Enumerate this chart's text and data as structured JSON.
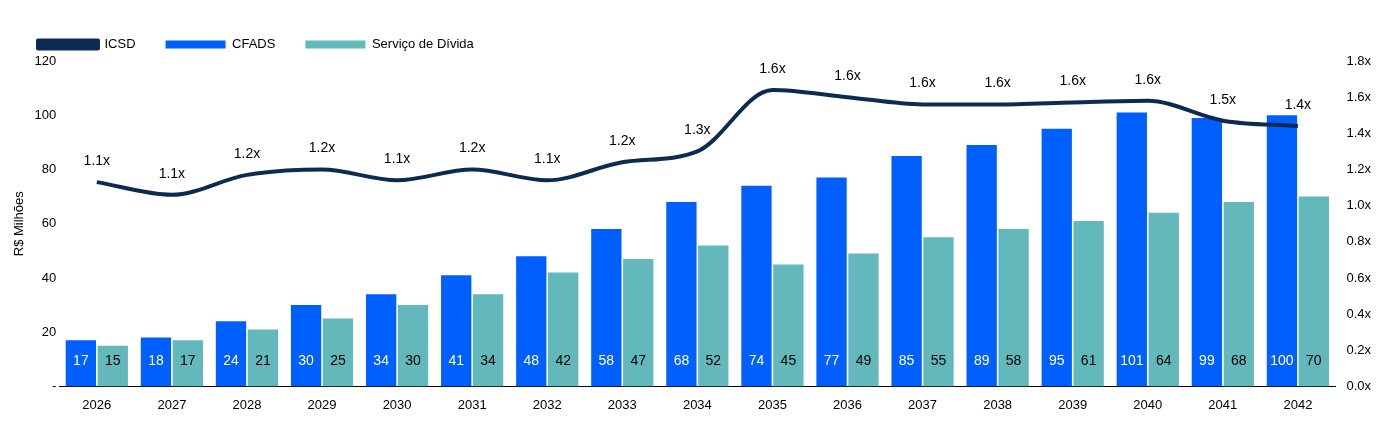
{
  "chart_data": {
    "type": "bar",
    "ylabel": "R$ Milhões",
    "categories": [
      "2026",
      "2027",
      "2028",
      "2029",
      "2030",
      "2031",
      "2032",
      "2033",
      "2034",
      "2035",
      "2036",
      "2037",
      "2038",
      "2039",
      "2040",
      "2041",
      "2042"
    ],
    "series": [
      {
        "name": "CFADS",
        "color": "#0060ff",
        "values": [
          17,
          18,
          24,
          30,
          34,
          41,
          48,
          58,
          68,
          74,
          77,
          85,
          89,
          95,
          101,
          99,
          100
        ],
        "value_labels": [
          "17",
          "18",
          "24",
          "30",
          "34",
          "41",
          "48",
          "58",
          "68",
          "74",
          "77",
          "85",
          "89",
          "95",
          "101",
          "99",
          "100"
        ]
      },
      {
        "name": "Serviço de Dívida",
        "color": "#62b8bb",
        "values": [
          15,
          17,
          21,
          25,
          30,
          34,
          42,
          47,
          52,
          45,
          49,
          55,
          58,
          61,
          64,
          68,
          70
        ],
        "value_labels": [
          "15",
          "17",
          "21",
          "25",
          "30",
          "34",
          "42",
          "47",
          "52",
          "45",
          "49",
          "55",
          "58",
          "61",
          "64",
          "68",
          "70"
        ]
      },
      {
        "name": "ICSD",
        "type": "line",
        "axis": "y2",
        "color": "#0d2b52",
        "values": [
          1.13,
          1.06,
          1.17,
          1.2,
          1.14,
          1.2,
          1.14,
          1.24,
          1.3,
          1.64,
          1.6,
          1.56,
          1.56,
          1.57,
          1.58,
          1.47,
          1.44
        ],
        "value_labels": [
          "1.1x",
          "1.1x",
          "1.2x",
          "1.2x",
          "1.1x",
          "1.2x",
          "1.1x",
          "1.2x",
          "1.3x",
          "1.6x",
          "1.6x",
          "1.6x",
          "1.6x",
          "1.6x",
          "1.6x",
          "1.5x",
          "1.4x"
        ]
      }
    ],
    "ylim": [
      0,
      120
    ],
    "yticks": [
      {
        "value": 0,
        "label": "-"
      },
      20,
      40,
      60,
      80,
      100,
      120
    ],
    "y2lim": [
      0,
      1.8
    ],
    "y2ticks": [
      {
        "value": 0,
        "label": "0.0x"
      },
      {
        "value": 0.2,
        "label": "0.2x"
      },
      {
        "value": 0.4,
        "label": "0.4x"
      },
      {
        "value": 0.6,
        "label": "0.6x"
      },
      {
        "value": 0.8,
        "label": "0.8x"
      },
      {
        "value": 1,
        "label": "1.0x"
      },
      {
        "value": 1.2,
        "label": "1.2x"
      },
      {
        "value": 1.4,
        "label": "1.4x"
      },
      {
        "value": 1.6,
        "label": "1.6x"
      },
      {
        "value": 1.8,
        "label": "1.8x"
      }
    ],
    "grid": false,
    "legend": "top left"
  }
}
